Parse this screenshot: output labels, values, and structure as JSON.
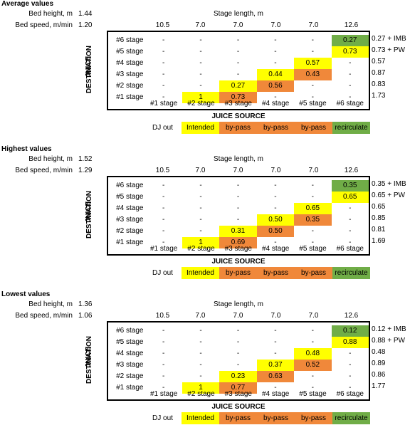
{
  "labels": {
    "bed_height": "Bed height, m",
    "bed_speed": "Bed speed, m/min",
    "stage_length": "Stage length, m",
    "juice": "JUICE",
    "destination": "DESTINATION",
    "juice_source": "JUICE SOURCE"
  },
  "stage_lengths": [
    "10.5",
    "7.0",
    "7.0",
    "7.0",
    "7.0",
    "12.6"
  ],
  "row_labels": [
    "#6 stage",
    "#5 stage",
    "#4 stage",
    "#3 stage",
    "#2 stage",
    "#1 stage"
  ],
  "source_labels": [
    "#1 stage",
    "#2 stage",
    "#3 stage",
    "#4 stage",
    "#5 stage",
    "#6 stage"
  ],
  "legend": [
    "DJ out",
    "Intended",
    "by-pass",
    "by-pass",
    "by-pass",
    "recirculate"
  ],
  "colors": {
    "yellow": "#ffff00",
    "orange": "#f0883a",
    "green": "#70ad47"
  },
  "blocks": [
    {
      "title": "Average values",
      "bed_height": "1.44",
      "bed_speed": "1.20",
      "rows": [
        [
          "-",
          "-",
          "-",
          "-",
          "-",
          "0.27"
        ],
        [
          "-",
          "-",
          "-",
          "-",
          "-",
          "0.73"
        ],
        [
          "-",
          "-",
          "-",
          "-",
          "0.57",
          "-"
        ],
        [
          "-",
          "-",
          "-",
          "0.44",
          "0.43",
          "-"
        ],
        [
          "-",
          "-",
          "0.27",
          "0.56",
          "-",
          "-"
        ],
        [
          "-",
          "1",
          "0.73",
          "-",
          "-",
          "-"
        ]
      ],
      "row_sums": [
        "0.27 + IMB",
        "0.73 + PW",
        "0.57",
        "0.87",
        "0.83",
        "1.73"
      ]
    },
    {
      "title": "Highest values",
      "bed_height": "1.52",
      "bed_speed": "1.29",
      "rows": [
        [
          "-",
          "-",
          "-",
          "-",
          "-",
          "0.35"
        ],
        [
          "-",
          "-",
          "-",
          "-",
          "-",
          "0.65"
        ],
        [
          "-",
          "-",
          "-",
          "-",
          "0.65",
          "-"
        ],
        [
          "-",
          "-",
          "-",
          "0.50",
          "0.35",
          "-"
        ],
        [
          "-",
          "-",
          "0.31",
          "0.50",
          "-",
          "-"
        ],
        [
          "-",
          "1",
          "0.69",
          "-",
          "-",
          "-"
        ]
      ],
      "row_sums": [
        "0.35 + IMB",
        "0.65 + PW",
        "0.65",
        "0.85",
        "0.81",
        "1.69"
      ]
    },
    {
      "title": "Lowest values",
      "bed_height": "1.36",
      "bed_speed": "1.06",
      "rows": [
        [
          "-",
          "-",
          "-",
          "-",
          "-",
          "0.12"
        ],
        [
          "-",
          "-",
          "-",
          "-",
          "-",
          "0.88"
        ],
        [
          "-",
          "-",
          "-",
          "-",
          "0.48",
          "-"
        ],
        [
          "-",
          "-",
          "-",
          "0.37",
          "0.52",
          "-"
        ],
        [
          "-",
          "-",
          "0.23",
          "0.63",
          "-",
          "-"
        ],
        [
          "-",
          "1",
          "0.77",
          "-",
          "-",
          "-"
        ]
      ],
      "row_sums": [
        "0.12 + IMB",
        "0.88 + PW",
        "0.48",
        "0.89",
        "0.86",
        "1.77"
      ]
    }
  ]
}
